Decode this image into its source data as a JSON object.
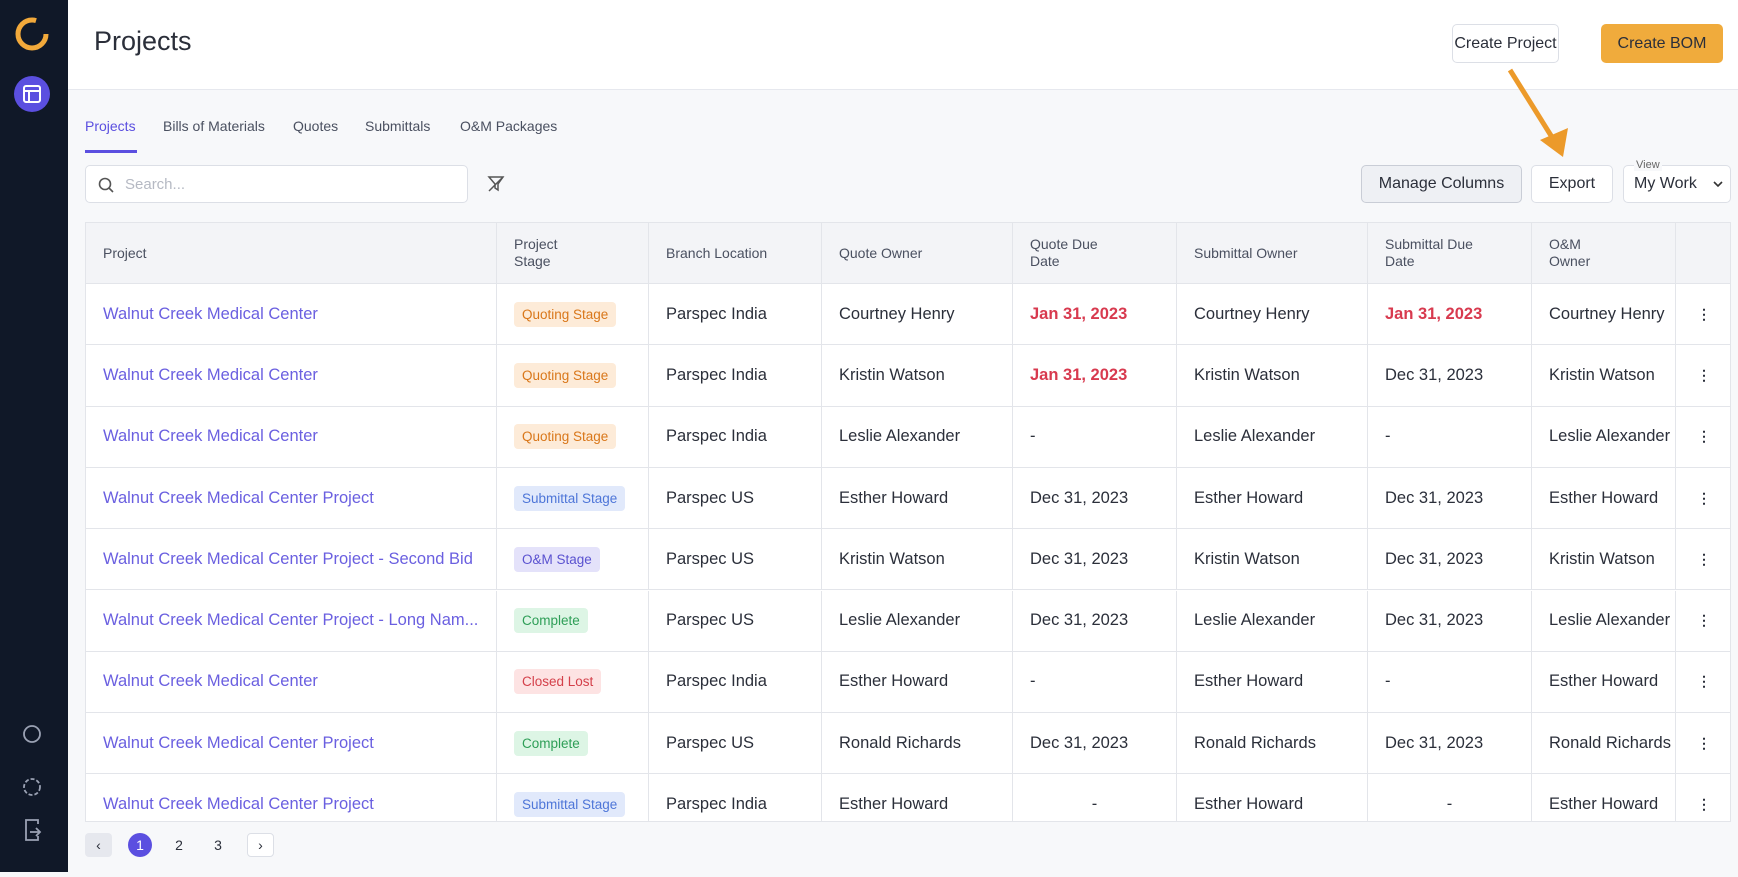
{
  "header": {
    "title": "Projects",
    "create_project": "Create Project",
    "create_bom": "Create BOM"
  },
  "tabs": [
    "Projects",
    "Bills of Materials",
    "Quotes",
    "Submittals",
    "O&M Packages"
  ],
  "toolbar": {
    "search_placeholder": "Search...",
    "manage_columns": "Manage Columns",
    "export": "Export",
    "view_label": "View",
    "view_value": "My Work"
  },
  "table": {
    "columns": [
      "Project",
      "Project Stage",
      "Branch Location",
      "Quote Owner",
      "Quote Due Date",
      "Submittal Owner",
      "Submittal Due Date",
      "O&M Owner"
    ],
    "rows": [
      [
        "Walnut Creek Medical Center",
        "Quoting Stage",
        "Parspec India",
        "Courtney Henry",
        "Jan 31, 2023",
        "Courtney Henry",
        "Jan 31, 2023",
        "Courtney Henry"
      ],
      [
        "Walnut Creek Medical Center",
        "Quoting Stage",
        "Parspec India",
        "Kristin Watson",
        "Jan 31, 2023",
        "Kristin Watson",
        "Dec 31, 2023",
        "Kristin Watson"
      ],
      [
        "Walnut Creek Medical Center",
        "Quoting Stage",
        "Parspec India",
        "Leslie Alexander",
        "-",
        "Leslie Alexander",
        "-",
        "Leslie Alexander"
      ],
      [
        "Walnut Creek Medical Center Project",
        "Submittal Stage",
        "Parspec US",
        "Esther Howard",
        "Dec 31, 2023",
        "Esther Howard",
        "Dec 31, 2023",
        "Esther Howard"
      ],
      [
        "Walnut Creek Medical Center Project - Second Bid",
        "O&M Stage",
        "Parspec US",
        "Kristin Watson",
        "Dec 31, 2023",
        "Kristin Watson",
        "Dec 31, 2023",
        "Kristin Watson"
      ],
      [
        "Walnut Creek Medical Center Project - Long Nam...",
        "Complete",
        "Parspec US",
        "Leslie Alexander",
        "Dec 31, 2023",
        "Leslie Alexander",
        "Dec 31, 2023",
        "Leslie Alexander"
      ],
      [
        "Walnut Creek Medical Center",
        "Closed Lost",
        "Parspec India",
        "Esther Howard",
        "-",
        "Esther Howard",
        "-",
        "Esther Howard"
      ],
      [
        "Walnut Creek Medical Center Project",
        "Complete",
        "Parspec US",
        "Ronald Richards",
        "Dec 31, 2023",
        "Ronald Richards",
        "Dec 31, 2023",
        "Ronald Richards"
      ],
      [
        "Walnut Creek Medical Center Project",
        "Submittal Stage",
        "Parspec India",
        "Esther Howard",
        "-",
        "Esther Howard",
        "-",
        "Esther Howard"
      ]
    ]
  },
  "pagination": [
    "1",
    "2",
    "3"
  ]
}
